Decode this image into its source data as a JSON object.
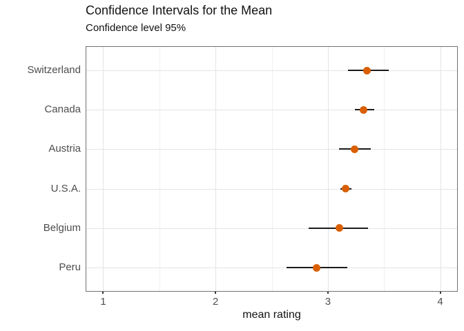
{
  "chart_data": {
    "type": "pointrange",
    "orientation": "horizontal",
    "title": "Confidence Intervals for the Mean",
    "subtitle": "Confidence level 95%",
    "xlabel": "mean rating",
    "ylabel": "",
    "categories": [
      "Switzerland",
      "Canada",
      "Austria",
      "U.S.A.",
      "Belgium",
      "Peru"
    ],
    "series": [
      {
        "name": "mean",
        "values": [
          3.35,
          3.32,
          3.24,
          3.16,
          3.1,
          2.9
        ]
      },
      {
        "name": "ci_low",
        "values": [
          3.18,
          3.24,
          3.1,
          3.11,
          2.83,
          2.63
        ]
      },
      {
        "name": "ci_high",
        "values": [
          3.54,
          3.41,
          3.38,
          3.21,
          3.36,
          3.17
        ]
      }
    ],
    "xlim": [
      0.85,
      4.15
    ],
    "x_major_ticks": [
      1,
      2,
      3,
      4
    ],
    "x_minor_ticks": [
      1.5,
      2.5,
      3.5
    ],
    "grid": true,
    "legend": false,
    "point_color": "#D95F02",
    "interval_color": "#1a1a1a",
    "grid_major_color": "#e4e4e4",
    "grid_minor_color": "#f0f0f0",
    "panel_border_color": "#707070",
    "axis_text_color": "#4d4d4d"
  }
}
